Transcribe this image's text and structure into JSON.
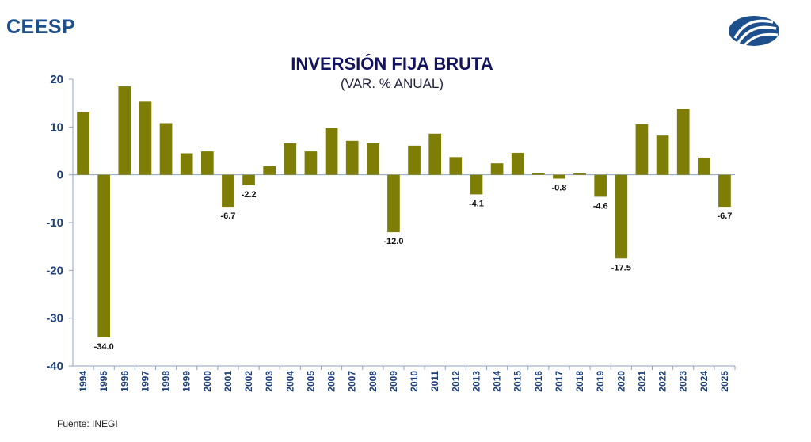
{
  "header": {
    "brand": "CEESP",
    "logo_icon": "ceesp-logo-icon"
  },
  "chart_data": {
    "type": "bar",
    "title": "INVERSIÓN FIJA BRUTA",
    "subtitle": "(VAR. % ANUAL)",
    "xlabel": "",
    "ylabel": "",
    "ylim": [
      -40,
      20
    ],
    "yticks": [
      "20",
      "10",
      "0",
      "-10",
      "-20",
      "-30",
      "-40"
    ],
    "categories": [
      "1994",
      "1995",
      "1996",
      "1997",
      "1998",
      "1999",
      "2000",
      "2001",
      "2002",
      "2003",
      "2004",
      "2005",
      "2006",
      "2007",
      "2008",
      "2009",
      "2010",
      "2011",
      "2012",
      "2013",
      "2014",
      "2015",
      "2016",
      "2017",
      "2018",
      "2019",
      "2020",
      "2021",
      "2022",
      "2023",
      "2024",
      "2025"
    ],
    "values": [
      13.2,
      -34.0,
      18.5,
      15.3,
      10.8,
      4.5,
      4.9,
      -6.7,
      -2.2,
      1.8,
      6.6,
      4.9,
      9.8,
      7.1,
      6.6,
      -12.0,
      6.1,
      8.6,
      3.7,
      -4.1,
      2.4,
      4.6,
      0.3,
      -0.8,
      0.3,
      -4.6,
      -17.5,
      10.6,
      8.2,
      13.8,
      3.6,
      -6.7
    ],
    "data_labels": [
      {
        "category": "1995",
        "text": "-34.0"
      },
      {
        "category": "2001",
        "text": "-6.7"
      },
      {
        "category": "2002",
        "text": "-2.2"
      },
      {
        "category": "2009",
        "text": "-12.0"
      },
      {
        "category": "2013",
        "text": "-4.1"
      },
      {
        "category": "2017",
        "text": "-0.8"
      },
      {
        "category": "2019",
        "text": "-4.6"
      },
      {
        "category": "2020",
        "text": "-17.5"
      },
      {
        "category": "2025",
        "text": "-6.7"
      }
    ],
    "bar_color": "#7e7d05",
    "axis_color": "#8fa3c4",
    "grid": false
  },
  "footer": {
    "source": "Fuente: INEGI"
  }
}
